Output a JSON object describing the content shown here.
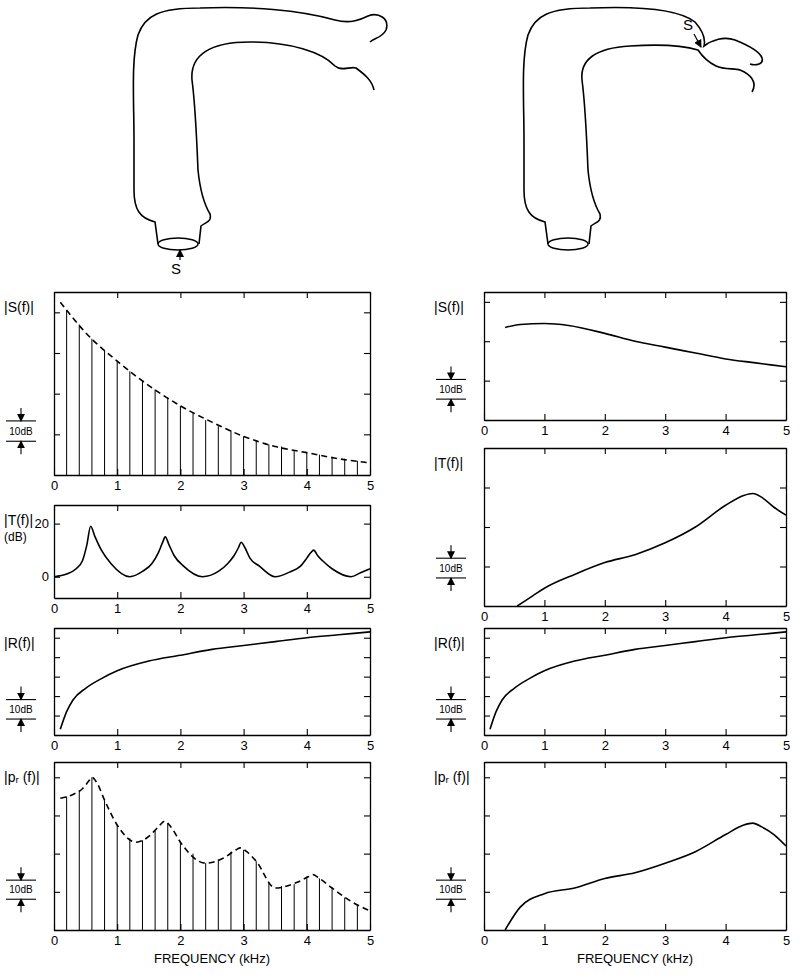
{
  "chart_data": [
    {
      "type": "line",
      "color": "#000000",
      "ylabel": [
        "|S(f)|"
      ],
      "xlim": [
        0,
        5
      ],
      "xticks": [
        0,
        1,
        2,
        3,
        4,
        5
      ],
      "ylim": [
        0,
        90
      ],
      "yticks": [
        0,
        20,
        40,
        60,
        80
      ],
      "tick_labels": "x",
      "grid": false,
      "scale_bar": {
        "value": 10,
        "label": "10dB"
      },
      "series": [
        {
          "type": "stem",
          "x": [
            0.2,
            0.4,
            0.6,
            0.8,
            1,
            1.2,
            1.4,
            1.6,
            1.8,
            2,
            2.2,
            2.4,
            2.6,
            2.8,
            3,
            3.2,
            3.4,
            3.6,
            3.8,
            4,
            4.2,
            4.4,
            4.6,
            4.8
          ],
          "values": [
            81,
            74,
            67,
            61,
            56,
            51,
            46,
            42,
            38,
            34,
            31,
            27,
            24,
            22,
            19,
            17,
            15,
            14,
            12,
            11,
            10,
            9,
            8,
            7
          ]
        },
        {
          "type": "line",
          "line_style": "dashed",
          "x": [
            0.1,
            0.5,
            1,
            1.5,
            2,
            2.5,
            3,
            3.5,
            4,
            4.5,
            5
          ],
          "values": [
            85,
            70,
            56,
            44,
            34,
            26,
            19,
            14,
            11,
            8,
            6
          ]
        }
      ]
    },
    {
      "type": "line",
      "color": "#000000",
      "ylabel": [
        "|T(f)|",
        "(dB)"
      ],
      "xlim": [
        0,
        5
      ],
      "xticks": [
        0,
        1,
        2,
        3,
        4,
        5
      ],
      "ylim": [
        -8,
        27
      ],
      "yticks": [
        0,
        20
      ],
      "tick_labels": true,
      "grid": false,
      "series": [
        {
          "type": "line",
          "line_style": "solid",
          "x": [
            0,
            0.2,
            0.35,
            0.45,
            0.52,
            0.58,
            0.65,
            0.75,
            0.9,
            1.2,
            1.4,
            1.55,
            1.65,
            1.72,
            1.76,
            1.82,
            1.9,
            2.05,
            2.35,
            2.6,
            2.75,
            2.85,
            2.92,
            2.96,
            3.02,
            3.1,
            3.25,
            3.5,
            3.75,
            3.9,
            4.0,
            4.06,
            4.11,
            4.17,
            4.25,
            4.4,
            4.7,
            4.85,
            5
          ],
          "values": [
            0,
            1,
            3,
            6,
            12,
            19,
            15,
            10,
            5,
            0,
            2,
            5,
            9,
            13,
            15,
            12,
            8,
            4,
            0,
            2,
            5,
            8,
            11,
            13,
            11,
            7,
            4,
            0,
            2,
            4,
            7,
            9,
            10,
            8,
            6,
            3,
            0,
            1.5,
            3
          ]
        }
      ]
    },
    {
      "type": "line",
      "color": "#000000",
      "ylabel": [
        "|R(f)|"
      ],
      "xlim": [
        0,
        5
      ],
      "xticks": [
        0,
        1,
        2,
        3,
        4,
        5
      ],
      "ylim": [
        0,
        55
      ],
      "yticks": [
        0,
        10,
        20,
        30,
        40,
        50
      ],
      "tick_labels": "x",
      "grid": false,
      "scale_bar": {
        "value": 10,
        "label": "10dB"
      },
      "series": [
        {
          "type": "line",
          "line_style": "solid",
          "x": [
            0.1,
            0.2,
            0.3,
            0.5,
            0.75,
            1,
            1.5,
            2,
            2.5,
            3,
            3.5,
            4,
            4.5,
            5
          ],
          "values": [
            3,
            12,
            18,
            24,
            29,
            33,
            38,
            41,
            44,
            46,
            48,
            50,
            51.5,
            53
          ]
        }
      ]
    },
    {
      "type": "line",
      "color": "#000000",
      "ylabel": [
        "|pᵣ (f)|"
      ],
      "xlabel": "FREQUENCY (kHz)",
      "xlim": [
        0,
        5
      ],
      "xticks": [
        0,
        1,
        2,
        3,
        4,
        5
      ],
      "ylim": [
        0,
        88
      ],
      "yticks": [
        0,
        20,
        40,
        60,
        80
      ],
      "tick_labels": "x",
      "grid": false,
      "scale_bar": {
        "value": 10,
        "label": "10dB"
      },
      "series": [
        {
          "type": "stem",
          "x": [
            0.2,
            0.4,
            0.6,
            0.8,
            1,
            1.2,
            1.4,
            1.6,
            1.8,
            2,
            2.2,
            2.4,
            2.6,
            2.8,
            3,
            3.2,
            3.4,
            3.6,
            3.8,
            4,
            4.2,
            4.4,
            4.6,
            4.8
          ],
          "values": [
            70,
            73,
            80,
            68,
            55,
            48,
            47,
            52,
            56,
            46,
            40,
            35,
            37,
            41,
            42,
            36,
            25,
            23,
            24,
            28,
            27,
            22,
            17,
            13
          ]
        },
        {
          "type": "line",
          "line_style": "dashed",
          "x": [
            0.1,
            0.3,
            0.45,
            0.55,
            0.6,
            0.68,
            0.8,
            1.0,
            1.3,
            1.5,
            1.65,
            1.75,
            1.85,
            2.0,
            2.4,
            2.7,
            2.88,
            2.95,
            3.05,
            3.2,
            3.5,
            3.85,
            4.03,
            4.1,
            4.2,
            4.4,
            4.7,
            5.0
          ],
          "values": [
            69,
            71,
            74,
            78,
            80,
            77,
            68,
            55,
            46,
            49,
            54,
            57,
            54,
            46,
            35,
            38,
            42,
            43,
            41,
            36,
            22,
            25,
            28,
            29,
            27,
            22,
            15,
            10
          ]
        }
      ]
    },
    {
      "type": "line",
      "color": "#000000",
      "ylabel": [
        "|S(f)|"
      ],
      "xlim": [
        0,
        5
      ],
      "xticks": [
        0,
        1,
        2,
        3,
        4,
        5
      ],
      "ylim": [
        0,
        65
      ],
      "yticks": [
        0,
        20,
        40,
        60
      ],
      "tick_labels": "x",
      "grid": false,
      "scale_bar": {
        "value": 10,
        "label": "10dB"
      },
      "series": [
        {
          "type": "line",
          "line_style": "solid",
          "x": [
            0.35,
            0.6,
            1,
            1.4,
            2,
            2.5,
            3,
            3.5,
            4,
            4.5,
            5
          ],
          "values": [
            47,
            48.5,
            49,
            48,
            44,
            40,
            37,
            34,
            31,
            29,
            27
          ]
        }
      ]
    },
    {
      "type": "line",
      "color": "#000000",
      "ylabel": [
        "|T(f)|"
      ],
      "xlim": [
        0,
        5
      ],
      "xticks": [
        0,
        1,
        2,
        3,
        4,
        5
      ],
      "ylim": [
        0,
        80
      ],
      "yticks": [
        0,
        20,
        40,
        60
      ],
      "tick_labels": "x",
      "grid": false,
      "scale_bar": {
        "value": 10,
        "label": "10dB"
      },
      "series": [
        {
          "type": "line",
          "line_style": "solid",
          "x": [
            0.55,
            0.8,
            1,
            1.5,
            2,
            2.5,
            3,
            3.5,
            4,
            4.3,
            4.45,
            4.6,
            4.8,
            5
          ],
          "values": [
            0,
            5,
            9,
            16,
            22,
            26,
            32,
            40,
            51,
            56,
            57,
            55,
            50,
            46
          ]
        }
      ]
    },
    {
      "type": "line",
      "color": "#000000",
      "ylabel": [
        "|R(f)|"
      ],
      "xlim": [
        0,
        5
      ],
      "xticks": [
        0,
        1,
        2,
        3,
        4,
        5
      ],
      "ylim": [
        0,
        55
      ],
      "yticks": [
        0,
        10,
        20,
        30,
        40,
        50
      ],
      "tick_labels": "x",
      "grid": false,
      "scale_bar": {
        "value": 10,
        "label": "10dB"
      },
      "series": [
        {
          "type": "line",
          "line_style": "solid",
          "x": [
            0.1,
            0.2,
            0.3,
            0.5,
            0.75,
            1,
            1.5,
            2,
            2.5,
            3,
            3.5,
            4,
            4.5,
            5
          ],
          "values": [
            3,
            12,
            18,
            24,
            29,
            33,
            38,
            41,
            44,
            46,
            48,
            50,
            51.5,
            53
          ]
        }
      ]
    },
    {
      "type": "line",
      "color": "#000000",
      "ylabel": [
        "|pᵣ (f)|"
      ],
      "xlabel": "FREQUENCY (kHz)",
      "xlim": [
        0,
        5
      ],
      "xticks": [
        0,
        1,
        2,
        3,
        4,
        5
      ],
      "ylim": [
        0,
        88
      ],
      "yticks": [
        0,
        20,
        40,
        60,
        80
      ],
      "tick_labels": "x",
      "grid": false,
      "scale_bar": {
        "value": 10,
        "label": "10dB"
      },
      "series": [
        {
          "type": "line",
          "line_style": "solid",
          "x": [
            0.35,
            0.6,
            1,
            1.5,
            2,
            2.5,
            3,
            3.5,
            4,
            4.3,
            4.45,
            4.6,
            4.8,
            5
          ],
          "values": [
            0,
            12,
            19,
            22,
            27,
            30,
            35,
            41,
            50,
            55,
            56,
            54,
            50,
            44
          ]
        }
      ]
    }
  ],
  "diagrams": [
    {
      "label": "S"
    },
    {
      "label": "S"
    }
  ]
}
